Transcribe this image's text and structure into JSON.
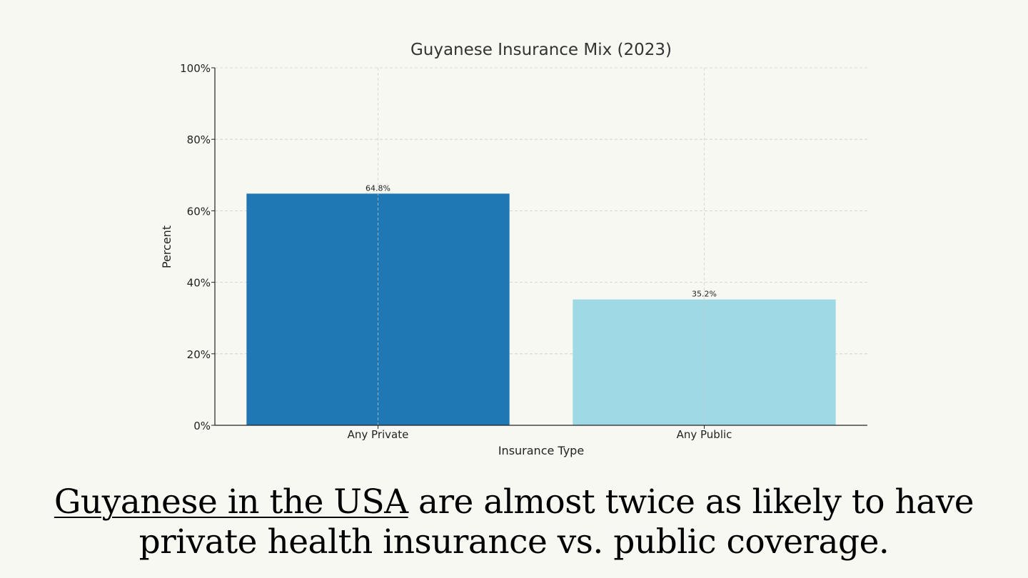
{
  "chart_data": {
    "type": "bar",
    "title": "Guyanese Insurance Mix (2023)",
    "xlabel": "Insurance Type",
    "ylabel": "Percent",
    "categories": [
      "Any Private",
      "Any Public"
    ],
    "values": [
      64.8,
      35.2
    ],
    "value_labels": [
      "64.8%",
      "35.2%"
    ],
    "colors": [
      "#1f77b4",
      "#9fd9e6"
    ],
    "ylim": [
      0,
      100
    ],
    "yticks": [
      0,
      20,
      40,
      60,
      80,
      100
    ],
    "ytick_labels": [
      "0%",
      "20%",
      "40%",
      "60%",
      "80%",
      "100%"
    ],
    "grid": true
  },
  "caption": {
    "link_text": "Guyanese in the USA",
    "line1_rest": " are almost twice as likely to have",
    "line2": "private health insurance vs. public coverage."
  }
}
